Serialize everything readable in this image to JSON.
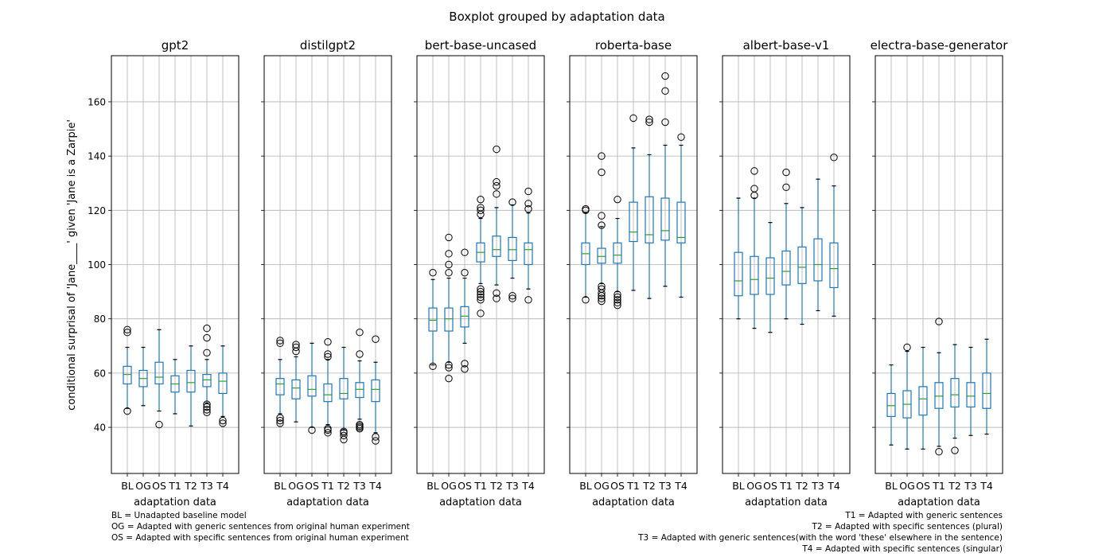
{
  "chart_data": {
    "type": "boxplot",
    "title": "Boxplot grouped by adaptation data",
    "ylabel": "conditional surprisal of 'Jane____' given 'Jane is a Zarpie'",
    "xlabel": "adaptation data",
    "ylim": [
      23,
      177
    ],
    "yticks": [
      40,
      60,
      80,
      100,
      120,
      140,
      160
    ],
    "grid": true,
    "categories": [
      "BL",
      "OG",
      "OS",
      "T1",
      "T2",
      "T3",
      "T4"
    ],
    "colors": {
      "box": "#1f77b4",
      "median": "#2ca02c",
      "flier": "#000000",
      "grid": "#b0b0b0"
    },
    "panels": [
      {
        "name": "gpt2",
        "boxes": [
          {
            "wlo": 47,
            "q1": 56,
            "med": 59.5,
            "q3": 62.5,
            "whi": 69.5,
            "fliers": [
              46,
              75,
              76
            ]
          },
          {
            "wlo": 48,
            "q1": 55,
            "med": 58,
            "q3": 61,
            "whi": 69.5,
            "fliers": []
          },
          {
            "wlo": 46,
            "q1": 56,
            "med": 58.5,
            "q3": 64,
            "whi": 76,
            "fliers": [
              41
            ]
          },
          {
            "wlo": 45,
            "q1": 53,
            "med": 56,
            "q3": 59,
            "whi": 65,
            "fliers": []
          },
          {
            "wlo": 40.5,
            "q1": 53,
            "med": 56.5,
            "q3": 61,
            "whi": 70,
            "fliers": []
          },
          {
            "wlo": 49,
            "q1": 55,
            "med": 57.5,
            "q3": 59.5,
            "whi": 65,
            "fliers": [
              45.5,
              46.5,
              47.5,
              48.5,
              67.5,
              73,
              76.5
            ]
          },
          {
            "wlo": 44,
            "q1": 52.5,
            "med": 57,
            "q3": 60,
            "whi": 70,
            "fliers": [
              41.5,
              42.5
            ]
          }
        ]
      },
      {
        "name": "distilgpt2",
        "boxes": [
          {
            "wlo": 45,
            "q1": 52,
            "med": 56,
            "q3": 58,
            "whi": 65,
            "fliers": [
              41.5,
              42.5,
              43.5,
              71,
              72
            ]
          },
          {
            "wlo": 42,
            "q1": 50.5,
            "med": 54.5,
            "q3": 57.5,
            "whi": 66,
            "fliers": [
              68,
              69.5,
              70.5
            ]
          },
          {
            "wlo": 40,
            "q1": 51.5,
            "med": 54,
            "q3": 59,
            "whi": 71,
            "fliers": [
              39
            ]
          },
          {
            "wlo": 41,
            "q1": 49.5,
            "med": 52,
            "q3": 56,
            "whi": 65,
            "fliers": [
              38,
              39,
              39.5,
              66,
              67,
              71.5
            ]
          },
          {
            "wlo": 39,
            "q1": 50.5,
            "med": 52.5,
            "q3": 58,
            "whi": 69.5,
            "fliers": [
              35.5,
              37,
              38,
              38.5
            ]
          },
          {
            "wlo": 43,
            "q1": 51,
            "med": 54,
            "q3": 56.5,
            "whi": 64.5,
            "fliers": [
              39.5,
              40,
              40.5,
              41,
              67,
              75
            ]
          },
          {
            "wlo": 38,
            "q1": 49.5,
            "med": 54,
            "q3": 57.5,
            "whi": 64,
            "fliers": [
              35,
              36.5,
              72.5
            ]
          }
        ]
      },
      {
        "name": "bert-base-uncased",
        "boxes": [
          {
            "wlo": 63,
            "q1": 75.5,
            "med": 79.5,
            "q3": 84,
            "whi": 94.5,
            "fliers": [
              62.5,
              97
            ]
          },
          {
            "wlo": 64,
            "q1": 75.5,
            "med": 80,
            "q3": 84,
            "whi": 95,
            "fliers": [
              58,
              62,
              63,
              97,
              100,
              104,
              110
            ]
          },
          {
            "wlo": 71,
            "q1": 77,
            "med": 81,
            "q3": 84.5,
            "whi": 95,
            "fliers": [
              61.5,
              63.5,
              97,
              104.5
            ]
          },
          {
            "wlo": 93,
            "q1": 101,
            "med": 104.5,
            "q3": 108,
            "whi": 117,
            "fliers": [
              82,
              87,
              88,
              89,
              90,
              91,
              118.5,
              120,
              121,
              124
            ]
          },
          {
            "wlo": 92.5,
            "q1": 103,
            "med": 105.5,
            "q3": 110.5,
            "whi": 121,
            "fliers": [
              87.5,
              89.5,
              126,
              129,
              130.5,
              142.5
            ]
          },
          {
            "wlo": 95,
            "q1": 101.5,
            "med": 105.5,
            "q3": 110,
            "whi": 122,
            "fliers": [
              87.5,
              88.5,
              123
            ]
          },
          {
            "wlo": 91,
            "q1": 100,
            "med": 105.5,
            "q3": 108,
            "whi": 119,
            "fliers": [
              87,
              120.5,
              122.5,
              127
            ]
          }
        ]
      },
      {
        "name": "roberta-base",
        "boxes": [
          {
            "wlo": 88,
            "q1": 100,
            "med": 104,
            "q3": 108,
            "whi": 119,
            "fliers": [
              87,
              120,
              120.5
            ]
          },
          {
            "wlo": 93,
            "q1": 100.5,
            "med": 103,
            "q3": 106,
            "whi": 114,
            "fliers": [
              86.5,
              87.5,
              88.5,
              89.5,
              91,
              92,
              114.5,
              118,
              134,
              140
            ]
          },
          {
            "wlo": 90,
            "q1": 100.5,
            "med": 103.5,
            "q3": 108,
            "whi": 117,
            "fliers": [
              85,
              86,
              87,
              88,
              89,
              124
            ]
          },
          {
            "wlo": 90.5,
            "q1": 108.5,
            "med": 112,
            "q3": 123,
            "whi": 143,
            "fliers": [
              154
            ]
          },
          {
            "wlo": 87.5,
            "q1": 108,
            "med": 111,
            "q3": 125,
            "whi": 140.5,
            "fliers": [
              152.5,
              153.5
            ]
          },
          {
            "wlo": 92,
            "q1": 109,
            "med": 112.5,
            "q3": 124.5,
            "whi": 144,
            "fliers": [
              152.5,
              164,
              169.5
            ]
          },
          {
            "wlo": 88,
            "q1": 108,
            "med": 110,
            "q3": 123,
            "whi": 144,
            "fliers": [
              147
            ]
          }
        ]
      },
      {
        "name": "albert-base-v1",
        "boxes": [
          {
            "wlo": 80,
            "q1": 88.5,
            "med": 94,
            "q3": 104.5,
            "whi": 124.5,
            "fliers": []
          },
          {
            "wlo": 76.5,
            "q1": 89,
            "med": 94.5,
            "q3": 103,
            "whi": 124.5,
            "fliers": [
              125.5,
              128,
              134.5
            ]
          },
          {
            "wlo": 75,
            "q1": 89,
            "med": 95,
            "q3": 102.5,
            "whi": 115.5,
            "fliers": []
          },
          {
            "wlo": 80,
            "q1": 92.5,
            "med": 97.5,
            "q3": 105,
            "whi": 122.5,
            "fliers": [
              128.5,
              134
            ]
          },
          {
            "wlo": 78,
            "q1": 93,
            "med": 99,
            "q3": 106.5,
            "whi": 121,
            "fliers": []
          },
          {
            "wlo": 83,
            "q1": 94,
            "med": 100,
            "q3": 109.5,
            "whi": 131.5,
            "fliers": []
          },
          {
            "wlo": 81,
            "q1": 91.5,
            "med": 98.5,
            "q3": 108,
            "whi": 129,
            "fliers": [
              139.5
            ]
          }
        ]
      },
      {
        "name": "electra-base-generator",
        "boxes": [
          {
            "wlo": 33.5,
            "q1": 44,
            "med": 48,
            "q3": 52.5,
            "whi": 63,
            "fliers": []
          },
          {
            "wlo": 32,
            "q1": 43.5,
            "med": 48.5,
            "q3": 53.5,
            "whi": 68,
            "fliers": [
              69.5
            ]
          },
          {
            "wlo": 32,
            "q1": 44.5,
            "med": 50.5,
            "q3": 55,
            "whi": 69.5,
            "fliers": []
          },
          {
            "wlo": 33,
            "q1": 47,
            "med": 51.5,
            "q3": 56.5,
            "whi": 67.5,
            "fliers": [
              31,
              79
            ]
          },
          {
            "wlo": 36,
            "q1": 47.5,
            "med": 52,
            "q3": 58,
            "whi": 70.5,
            "fliers": [
              31.5
            ]
          },
          {
            "wlo": 37,
            "q1": 47.5,
            "med": 51.5,
            "q3": 56.5,
            "whi": 69.5,
            "fliers": []
          },
          {
            "wlo": 37.5,
            "q1": 47,
            "med": 52.5,
            "q3": 60,
            "whi": 72.5,
            "fliers": []
          }
        ]
      }
    ],
    "notes_left": [
      "BL = Unadapted baseline model",
      "OG = Adapted with generic sentences from original human experiment",
      "OS = Adapted with specific sentences from original human experiment"
    ],
    "notes_right": [
      "T1 = Adapted with generic sentences",
      "T2 = Adapted with specific sentences (plural)",
      "T3 = Adapted with generic sentences(with the word 'these' elsewhere in the sentence)",
      "T4 = Adapted with specific sentences (singular)"
    ]
  }
}
